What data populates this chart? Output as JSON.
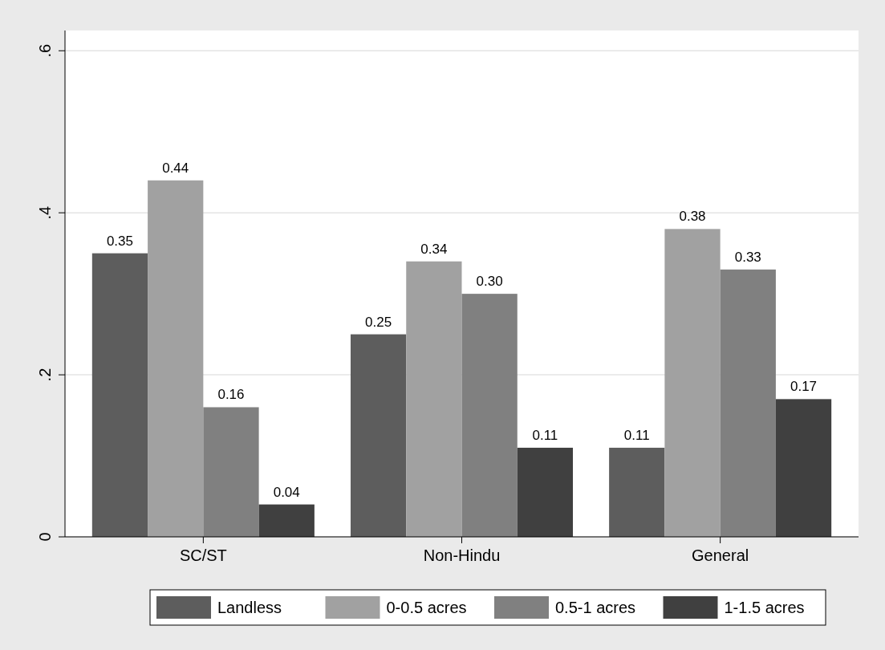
{
  "chart_data": {
    "type": "bar",
    "categories": [
      "SC/ST",
      "Non-Hindu",
      "General"
    ],
    "series": [
      {
        "name": "Landless",
        "color": "#5d5d5d",
        "values": [
          0.35,
          0.25,
          0.11
        ],
        "value_labels": [
          "0.35",
          "0.25",
          "0.11"
        ]
      },
      {
        "name": "0-0.5 acres",
        "color": "#a1a1a1",
        "values": [
          0.44,
          0.34,
          0.38
        ],
        "value_labels": [
          "0.44",
          "0.34",
          "0.38"
        ]
      },
      {
        "name": "0.5-1 acres",
        "color": "#808080",
        "values": [
          0.16,
          0.3,
          0.33
        ],
        "value_labels": [
          "0.16",
          "0.30",
          "0.33"
        ]
      },
      {
        "name": "1-1.5 acres",
        "color": "#404040",
        "values": [
          0.04,
          0.11,
          0.17
        ],
        "value_labels": [
          "0.04",
          "0.11",
          "0.17"
        ]
      }
    ],
    "ylim": [
      0,
      0.625
    ],
    "yticks": [
      0,
      {
        "value": 0.2,
        "label": ".2"
      },
      {
        "value": 0.4,
        "label": ".4"
      },
      {
        "value": 0.6,
        "label": ".6"
      }
    ],
    "grid": "y",
    "legend": "bottom"
  }
}
